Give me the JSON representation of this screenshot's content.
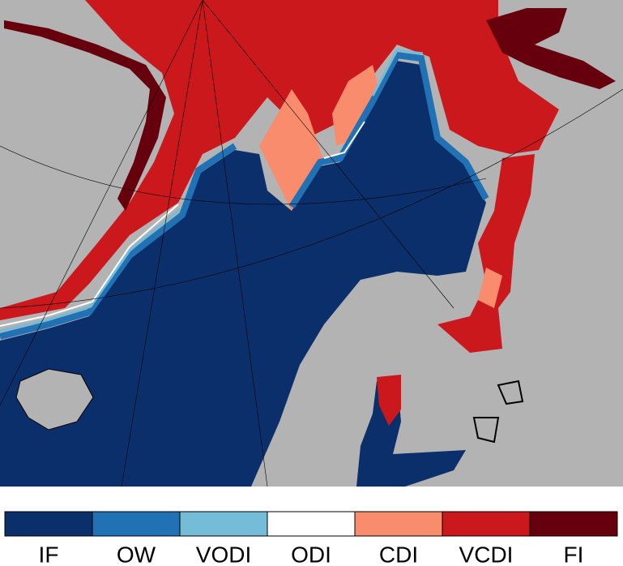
{
  "legend": {
    "items": [
      {
        "label": "IF",
        "color": "#0b2f6b"
      },
      {
        "label": "OW",
        "color": "#2171b5"
      },
      {
        "label": "VODI",
        "color": "#74bcd8"
      },
      {
        "label": "ODI",
        "color": "#ffffff"
      },
      {
        "label": "CDI",
        "color": "#f98c6d"
      },
      {
        "label": "VCDI",
        "color": "#cb181d"
      },
      {
        "label": "FI",
        "color": "#67000d"
      }
    ]
  }
}
